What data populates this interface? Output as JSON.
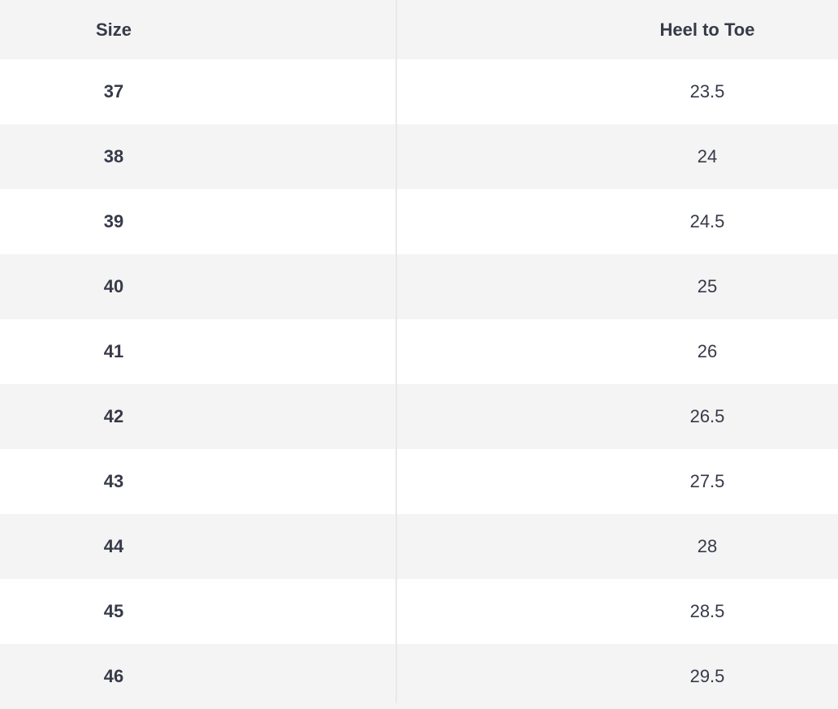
{
  "headers": {
    "size": "Size",
    "heel_to_toe": "Heel to Toe"
  },
  "rows": [
    {
      "size": "37",
      "heel_to_toe": "23.5"
    },
    {
      "size": "38",
      "heel_to_toe": "24"
    },
    {
      "size": "39",
      "heel_to_toe": "24.5"
    },
    {
      "size": "40",
      "heel_to_toe": "25"
    },
    {
      "size": "41",
      "heel_to_toe": "26"
    },
    {
      "size": "42",
      "heel_to_toe": "26.5"
    },
    {
      "size": "43",
      "heel_to_toe": "27.5"
    },
    {
      "size": "44",
      "heel_to_toe": "28"
    },
    {
      "size": "45",
      "heel_to_toe": "28.5"
    },
    {
      "size": "46",
      "heel_to_toe": "29.5"
    }
  ],
  "colors": {
    "text": "#373a48",
    "stripe": "#f4f4f4",
    "divider": "#e9e9e9"
  }
}
